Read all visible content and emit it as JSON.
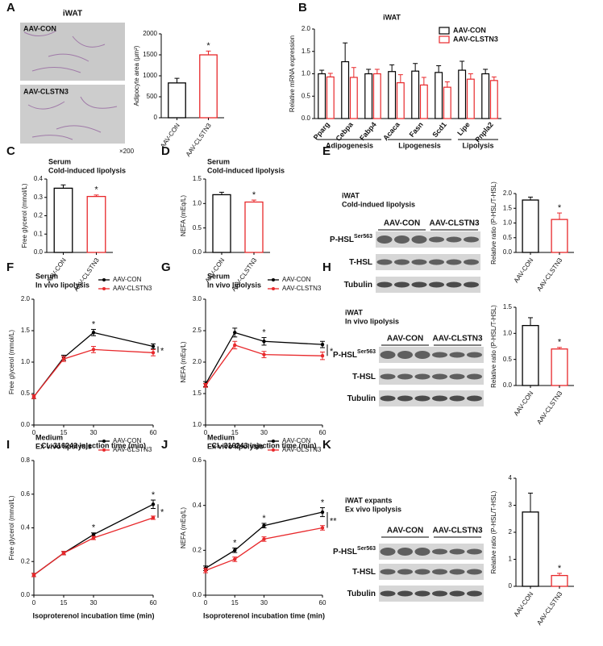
{
  "images": {
    "title": "iWAT",
    "labels": [
      "AAV-CON",
      "AAV-CLSTN3"
    ],
    "magnification": "×200"
  },
  "blots": [
    {
      "title": "iWAT",
      "subtitle": "Cold-indued lipolysis",
      "groups": [
        "AAV-CON",
        "AAV-CLSTN3"
      ],
      "rows": [
        {
          "text": "P-HSL",
          "sup": "Ser563"
        },
        {
          "text": "T-HSL"
        },
        {
          "text": "Tubulin"
        }
      ]
    },
    {
      "title": "iWAT",
      "subtitle": "In vivo lipolysis",
      "groups": [
        "AAV-CON",
        "AAV-CLSTN3"
      ],
      "rows": [
        {
          "text": "P-HSL",
          "sup": "Ser563"
        },
        {
          "text": "T-HSL"
        },
        {
          "text": "Tubulin"
        }
      ]
    },
    {
      "title": "iWAT expants",
      "subtitle": "Ex vivo lipolysis",
      "groups": [
        "AAV-CON",
        "AAV-CLSTN3"
      ],
      "rows": [
        {
          "text": "P-HSL",
          "sup": "Ser563"
        },
        {
          "text": "T-HSL"
        },
        {
          "text": "Tubulin"
        }
      ]
    }
  ],
  "chart_data": [
    {
      "panel": "A",
      "type": "bar",
      "ylabel": "Adipocyte area (μm²)",
      "categories": [
        "AAV-CON",
        "AAV-CLSTN3"
      ],
      "values": [
        830,
        1500
      ],
      "errors": [
        110,
        90
      ],
      "colors": [
        "#000000",
        "#e8282b"
      ],
      "sig_labels": [
        null,
        "*"
      ],
      "ylim": [
        0,
        2000
      ],
      "yticks": [
        0,
        500,
        1000,
        1500,
        2000
      ]
    },
    {
      "panel": "B",
      "type": "grouped",
      "title": "iWAT",
      "ylabel": "Relative mRNA expression",
      "categories": [
        "Pparg",
        "Cebpa",
        "Fabp4",
        "Acaca",
        "Fasn",
        "Scd1",
        "Lipe",
        "Pnpla2"
      ],
      "series": [
        {
          "name": "AAV-CON",
          "color": "#000000",
          "values": [
            1.0,
            1.27,
            1.0,
            1.05,
            1.06,
            1.03,
            1.08,
            1.0
          ],
          "errors": [
            0.08,
            0.42,
            0.1,
            0.15,
            0.17,
            0.15,
            0.2,
            0.1
          ]
        },
        {
          "name": "AAV-CLSTN3",
          "color": "#e8282b",
          "values": [
            0.93,
            0.92,
            1.0,
            0.8,
            0.75,
            0.7,
            0.88,
            0.85
          ],
          "errors": [
            0.08,
            0.22,
            0.1,
            0.18,
            0.17,
            0.12,
            0.12,
            0.08
          ]
        }
      ],
      "groups": [
        {
          "label": "Adipogenesis",
          "from": 0,
          "to": 2
        },
        {
          "label": "Lipogenesis",
          "from": 3,
          "to": 5
        },
        {
          "label": "Lipolysis",
          "from": 6,
          "to": 7
        }
      ],
      "ylim": [
        0,
        2
      ],
      "yticks": [
        {
          "value": 0,
          "label": "0.0"
        },
        {
          "value": 0.5,
          "label": "0.5"
        },
        {
          "value": 1,
          "label": "1.0"
        },
        {
          "value": 1.5,
          "label": "1.5"
        },
        {
          "value": 2,
          "label": "2.0"
        }
      ]
    },
    {
      "panel": "C",
      "type": "bar",
      "title": "Serum",
      "subtitle": "Cold-induced lipolysis",
      "ylabel": "Free glycerol (mmol/L)",
      "categories": [
        "AAV-CON",
        "AAV-CLSTN3"
      ],
      "values": [
        0.35,
        0.305
      ],
      "errors": [
        0.018,
        0.008
      ],
      "colors": [
        "#000000",
        "#e8282b"
      ],
      "sig_labels": [
        null,
        "*"
      ],
      "ylim": [
        0,
        0.4
      ],
      "yticks": [
        {
          "value": 0,
          "label": "0.0"
        },
        0.1,
        0.2,
        0.3,
        0.4
      ]
    },
    {
      "panel": "D",
      "type": "bar",
      "title": "Serum",
      "subtitle": "Cold-induced lipolysis",
      "ylabel": "NEFA (mEq/L)",
      "categories": [
        "AAV-CON",
        "AAV-CLSTN3"
      ],
      "values": [
        1.18,
        1.03
      ],
      "errors": [
        0.05,
        0.04
      ],
      "colors": [
        "#000000",
        "#e8282b"
      ],
      "sig_labels": [
        null,
        "*"
      ],
      "ylim": [
        0,
        1.5
      ],
      "yticks": [
        {
          "value": 0,
          "label": "0.0"
        },
        0.5,
        {
          "value": 1,
          "label": "1.0"
        },
        1.5
      ]
    },
    {
      "panel": "E",
      "type": "bar",
      "ylabel": "Relative ratio (P-HSL/T-HSL)",
      "categories": [
        "AAV-CON",
        "AAV-CLSTN3"
      ],
      "values": [
        1.78,
        1.12
      ],
      "errors": [
        0.1,
        0.22
      ],
      "colors": [
        "#000000",
        "#e8282b"
      ],
      "sig_labels": [
        null,
        "*"
      ],
      "ylim": [
        0,
        2
      ],
      "yticks": [
        {
          "value": 0,
          "label": "0.0"
        },
        0.5,
        {
          "value": 1,
          "label": "1.0"
        },
        1.5,
        {
          "value": 2,
          "label": "2.0"
        }
      ]
    },
    {
      "panel": "F",
      "type": "line",
      "title": "Serum",
      "subtitle": "In vivo lipolysis",
      "xlabel": "CL-316243 injection time (min)",
      "ylabel": "Free glycerol (mmol/L)",
      "x": [
        0,
        15,
        30,
        60
      ],
      "series": [
        {
          "name": "AAV-CON",
          "color": "#000000",
          "values": [
            0.45,
            1.07,
            1.47,
            1.25
          ],
          "errors": [
            0.03,
            0.04,
            0.05,
            0.04
          ]
        },
        {
          "name": "AAV-CLSTN3",
          "color": "#e8282b",
          "values": [
            0.45,
            1.05,
            1.2,
            1.15
          ],
          "errors": [
            0.03,
            0.04,
            0.05,
            0.05
          ]
        }
      ],
      "sig_labels": [
        null,
        null,
        "*",
        null
      ],
      "overall_sig": "*",
      "xlim": [
        0,
        60
      ],
      "xticks": [
        0,
        15,
        30,
        60
      ],
      "ylim": [
        0,
        2
      ],
      "yticks": [
        {
          "value": 0,
          "label": "0.0"
        },
        0.5,
        {
          "value": 1,
          "label": "1.0"
        },
        1.5,
        {
          "value": 2,
          "label": "2.0"
        }
      ]
    },
    {
      "panel": "G",
      "type": "line",
      "title": "Serum",
      "subtitle": "In vivo lipolysis",
      "xlabel": "CL-316243 injection time (min)",
      "ylabel": "NEFA (mEq/L)",
      "x": [
        0,
        15,
        30,
        60
      ],
      "series": [
        {
          "name": "AAV-CON",
          "color": "#000000",
          "values": [
            1.65,
            2.47,
            2.33,
            2.28
          ],
          "errors": [
            0.04,
            0.07,
            0.06,
            0.05
          ]
        },
        {
          "name": "AAV-CLSTN3",
          "color": "#e8282b",
          "values": [
            1.63,
            2.27,
            2.12,
            2.1
          ],
          "errors": [
            0.03,
            0.06,
            0.05,
            0.06
          ]
        }
      ],
      "sig_labels": [
        null,
        null,
        "*",
        null
      ],
      "overall_sig": "*",
      "xlim": [
        0,
        60
      ],
      "xticks": [
        0,
        15,
        30,
        60
      ],
      "ylim": [
        1,
        3
      ],
      "yticks": [
        {
          "value": 1,
          "label": "1.0"
        },
        1.5,
        {
          "value": 2,
          "label": "2.0"
        },
        2.5,
        {
          "value": 3,
          "label": "3.0"
        }
      ]
    },
    {
      "panel": "H",
      "type": "bar",
      "ylabel": "Relative ratio (P-HSL/T-HSL)",
      "categories": [
        "AAV-CON",
        "AAV-CLSTN3"
      ],
      "values": [
        1.15,
        0.7
      ],
      "errors": [
        0.15,
        0.03
      ],
      "colors": [
        "#000000",
        "#e8282b"
      ],
      "sig_labels": [
        null,
        "*"
      ],
      "ylim": [
        0,
        1.5
      ],
      "yticks": [
        {
          "value": 0,
          "label": "0.0"
        },
        0.5,
        {
          "value": 1,
          "label": "1.0"
        },
        1.5
      ]
    },
    {
      "panel": "I",
      "type": "line",
      "title": "Medium",
      "subtitle": "Ex vivo lipolysis",
      "xlabel": "Isoproterenol incubation time (min)",
      "ylabel": "Free glycerol (mmol/L)",
      "x": [
        0,
        15,
        30,
        60
      ],
      "series": [
        {
          "name": "AAV-CON",
          "color": "#000000",
          "values": [
            0.12,
            0.25,
            0.36,
            0.54
          ],
          "errors": [
            0.01,
            0.01,
            0.01,
            0.025
          ]
        },
        {
          "name": "AAV-CLSTN3",
          "color": "#e8282b",
          "values": [
            0.12,
            0.25,
            0.34,
            0.46
          ],
          "errors": [
            0.01,
            0.01,
            0.01,
            0.01
          ]
        }
      ],
      "sig_labels": [
        null,
        null,
        "*",
        "*"
      ],
      "overall_sig": "*",
      "xlim": [
        0,
        60
      ],
      "xticks": [
        0,
        15,
        30,
        60
      ],
      "ylim": [
        0,
        0.8
      ],
      "yticks": [
        {
          "value": 0,
          "label": "0.0"
        },
        0.2,
        0.4,
        0.6,
        0.8
      ]
    },
    {
      "panel": "J",
      "type": "line",
      "title": "Medium",
      "subtitle": "Ex vivo lipolysis",
      "xlabel": "Isoproterenol incubation time (min)",
      "ylabel": "NEFA (mEq/L)",
      "x": [
        0,
        15,
        30,
        60
      ],
      "series": [
        {
          "name": "AAV-CON",
          "color": "#000000",
          "values": [
            0.12,
            0.2,
            0.31,
            0.37
          ],
          "errors": [
            0.01,
            0.01,
            0.01,
            0.02
          ]
        },
        {
          "name": "AAV-CLSTN3",
          "color": "#e8282b",
          "values": [
            0.11,
            0.16,
            0.25,
            0.3
          ],
          "errors": [
            0.01,
            0.01,
            0.01,
            0.01
          ]
        }
      ],
      "sig_labels": [
        null,
        "*",
        "*",
        "*"
      ],
      "overall_sig": "**",
      "xlim": [
        0,
        60
      ],
      "xticks": [
        0,
        15,
        30,
        60
      ],
      "ylim": [
        0,
        0.6
      ],
      "yticks": [
        {
          "value": 0,
          "label": "0.0"
        },
        0.2,
        0.4,
        0.6
      ]
    },
    {
      "panel": "K",
      "type": "bar",
      "ylabel": "Relative ratio (P-HSL/T-HSL)",
      "categories": [
        "AAV-CON",
        "AAV-CLSTN3"
      ],
      "values": [
        2.75,
        0.4
      ],
      "errors": [
        0.7,
        0.08
      ],
      "colors": [
        "#000000",
        "#e8282b"
      ],
      "sig_labels": [
        null,
        "*"
      ],
      "ylim": [
        0,
        4
      ],
      "yticks": [
        0,
        1,
        2,
        3,
        4
      ]
    }
  ]
}
